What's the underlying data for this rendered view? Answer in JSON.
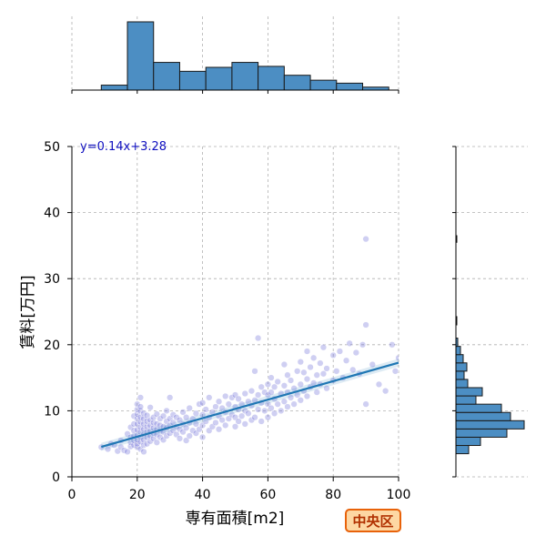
{
  "chart_data": {
    "type": "scatter",
    "xlabel": "専有面積[m2]",
    "ylabel": "賃料[万円]",
    "xlim": [
      0,
      100
    ],
    "ylim": [
      0,
      50
    ],
    "xticks": [
      "0",
      "20",
      "40",
      "60",
      "80",
      "100"
    ],
    "yticks": [
      "0",
      "10",
      "20",
      "30",
      "40",
      "50"
    ],
    "grid": true,
    "regression": {
      "label": "y=0.14x+3.28",
      "slope": 0.14,
      "intercept": 3.28,
      "x_range": [
        9,
        100
      ]
    },
    "marginal_x_histogram": {
      "bins": [
        {
          "x0": 9,
          "x1": 17,
          "count": 5
        },
        {
          "x0": 17,
          "x1": 25,
          "count": 69
        },
        {
          "x0": 25,
          "x1": 33,
          "count": 28
        },
        {
          "x0": 33,
          "x1": 41,
          "count": 19
        },
        {
          "x0": 41,
          "x1": 49,
          "count": 23
        },
        {
          "x0": 49,
          "x1": 57,
          "count": 28
        },
        {
          "x0": 57,
          "x1": 65,
          "count": 24
        },
        {
          "x0": 65,
          "x1": 73,
          "count": 15
        },
        {
          "x0": 73,
          "x1": 81,
          "count": 10
        },
        {
          "x0": 81,
          "x1": 89,
          "count": 7
        },
        {
          "x0": 89,
          "x1": 97,
          "count": 3
        }
      ]
    },
    "marginal_y_histogram": {
      "bins": [
        {
          "y0": 3.5,
          "y1": 4.75,
          "count": 14
        },
        {
          "y0": 4.75,
          "y1": 6.0,
          "count": 27
        },
        {
          "y0": 6.0,
          "y1": 7.25,
          "count": 56
        },
        {
          "y0": 7.25,
          "y1": 8.5,
          "count": 75
        },
        {
          "y0": 8.5,
          "y1": 9.75,
          "count": 60
        },
        {
          "y0": 9.75,
          "y1": 11.0,
          "count": 50
        },
        {
          "y0": 11.0,
          "y1": 12.25,
          "count": 22
        },
        {
          "y0": 12.25,
          "y1": 13.5,
          "count": 29
        },
        {
          "y0": 13.5,
          "y1": 14.75,
          "count": 13
        },
        {
          "y0": 14.75,
          "y1": 16.0,
          "count": 9
        },
        {
          "y0": 16.0,
          "y1": 17.25,
          "count": 12
        },
        {
          "y0": 17.25,
          "y1": 18.5,
          "count": 8
        },
        {
          "y0": 18.5,
          "y1": 19.75,
          "count": 5
        },
        {
          "y0": 19.75,
          "y1": 21.0,
          "count": 2
        },
        {
          "y0": 23.0,
          "y1": 24.25,
          "count": 1
        },
        {
          "y0": 35.5,
          "y1": 36.5,
          "count": 1
        }
      ]
    },
    "points": [
      [
        9,
        4.5
      ],
      [
        11,
        4.2
      ],
      [
        12,
        5.0
      ],
      [
        13,
        4.8
      ],
      [
        14,
        3.9
      ],
      [
        15,
        5.5
      ],
      [
        15,
        4.5
      ],
      [
        16,
        4.0
      ],
      [
        17,
        6.5
      ],
      [
        17,
        3.8
      ],
      [
        18,
        4.6
      ],
      [
        18,
        5.2
      ],
      [
        18,
        6.0
      ],
      [
        18,
        7.5
      ],
      [
        19,
        4.8
      ],
      [
        19,
        5.5
      ],
      [
        19,
        6.2
      ],
      [
        19,
        7.0
      ],
      [
        19,
        8.0
      ],
      [
        19,
        9.2
      ],
      [
        20,
        4.5
      ],
      [
        20,
        5.0
      ],
      [
        20,
        5.6
      ],
      [
        20,
        6.3
      ],
      [
        20,
        7.1
      ],
      [
        20,
        8.0
      ],
      [
        20,
        8.8
      ],
      [
        20,
        9.5
      ],
      [
        20,
        10.2
      ],
      [
        20,
        11.0
      ],
      [
        21,
        4.2
      ],
      [
        21,
        5.3
      ],
      [
        21,
        6.0
      ],
      [
        21,
        6.8
      ],
      [
        21,
        7.5
      ],
      [
        21,
        8.3
      ],
      [
        21,
        9.0
      ],
      [
        21,
        10.0
      ],
      [
        21,
        10.6
      ],
      [
        21,
        12.0
      ],
      [
        22,
        4.8
      ],
      [
        22,
        5.6
      ],
      [
        22,
        6.4
      ],
      [
        22,
        7.2
      ],
      [
        22,
        8.0
      ],
      [
        22,
        8.8
      ],
      [
        22,
        9.6
      ],
      [
        22,
        3.8
      ],
      [
        23,
        5.0
      ],
      [
        23,
        6.0
      ],
      [
        23,
        6.8
      ],
      [
        23,
        7.6
      ],
      [
        23,
        8.4
      ],
      [
        23,
        9.3
      ],
      [
        24,
        5.4
      ],
      [
        24,
        6.2
      ],
      [
        24,
        7.0
      ],
      [
        24,
        7.8
      ],
      [
        24,
        8.6
      ],
      [
        24,
        10.5
      ],
      [
        25,
        5.8
      ],
      [
        25,
        6.6
      ],
      [
        25,
        7.4
      ],
      [
        25,
        8.2
      ],
      [
        25,
        9.0
      ],
      [
        26,
        5.2
      ],
      [
        26,
        6.4
      ],
      [
        26,
        7.2
      ],
      [
        26,
        8.0
      ],
      [
        26,
        9.5
      ],
      [
        27,
        6.0
      ],
      [
        27,
        7.0
      ],
      [
        27,
        7.8
      ],
      [
        27,
        8.8
      ],
      [
        28,
        5.6
      ],
      [
        28,
        6.8
      ],
      [
        28,
        7.6
      ],
      [
        28,
        9.2
      ],
      [
        29,
        6.2
      ],
      [
        29,
        7.4
      ],
      [
        29,
        8.4
      ],
      [
        29,
        10.0
      ],
      [
        30,
        6.6
      ],
      [
        30,
        7.8
      ],
      [
        30,
        8.8
      ],
      [
        30,
        12.0
      ],
      [
        31,
        7.0
      ],
      [
        31,
        8.2
      ],
      [
        31,
        9.4
      ],
      [
        32,
        6.4
      ],
      [
        32,
        7.6
      ],
      [
        32,
        9.0
      ],
      [
        33,
        5.8
      ],
      [
        33,
        7.2
      ],
      [
        33,
        8.6
      ],
      [
        34,
        6.8
      ],
      [
        34,
        8.0
      ],
      [
        34,
        9.8
      ],
      [
        35,
        5.5
      ],
      [
        35,
        7.4
      ],
      [
        35,
        9.0
      ],
      [
        36,
        6.2
      ],
      [
        36,
        8.2
      ],
      [
        36,
        10.4
      ],
      [
        37,
        7.0
      ],
      [
        37,
        8.8
      ],
      [
        38,
        6.6
      ],
      [
        38,
        8.0
      ],
      [
        38,
        9.6
      ],
      [
        39,
        7.2
      ],
      [
        39,
        11.0
      ],
      [
        40,
        6.0
      ],
      [
        40,
        7.8
      ],
      [
        40,
        9.4
      ],
      [
        40,
        11.2
      ],
      [
        41,
        8.4
      ],
      [
        41,
        10.2
      ],
      [
        42,
        7.0
      ],
      [
        42,
        9.0
      ],
      [
        42,
        12.0
      ],
      [
        43,
        7.6
      ],
      [
        43,
        9.8
      ],
      [
        44,
        8.2
      ],
      [
        44,
        10.6
      ],
      [
        45,
        7.2
      ],
      [
        45,
        9.2
      ],
      [
        45,
        11.4
      ],
      [
        46,
        8.6
      ],
      [
        46,
        10.4
      ],
      [
        47,
        7.8
      ],
      [
        47,
        9.8
      ],
      [
        47,
        12.2
      ],
      [
        48,
        8.8
      ],
      [
        48,
        11.0
      ],
      [
        49,
        9.4
      ],
      [
        49,
        12.0
      ],
      [
        50,
        7.6
      ],
      [
        50,
        9.0
      ],
      [
        50,
        10.6
      ],
      [
        50,
        12.4
      ],
      [
        51,
        8.4
      ],
      [
        51,
        10.2
      ],
      [
        51,
        11.8
      ],
      [
        52,
        9.2
      ],
      [
        52,
        11.0
      ],
      [
        53,
        8.0
      ],
      [
        53,
        10.0
      ],
      [
        53,
        12.6
      ],
      [
        54,
        9.6
      ],
      [
        54,
        11.4
      ],
      [
        55,
        8.6
      ],
      [
        55,
        10.8
      ],
      [
        55,
        13.0
      ],
      [
        56,
        9.0
      ],
      [
        56,
        11.6
      ],
      [
        56,
        16.0
      ],
      [
        57,
        10.2
      ],
      [
        57,
        12.4
      ],
      [
        57,
        21.0
      ],
      [
        58,
        8.4
      ],
      [
        58,
        11.2
      ],
      [
        58,
        13.6
      ],
      [
        59,
        10.0
      ],
      [
        59,
        12.8
      ],
      [
        60,
        9.0
      ],
      [
        60,
        11.0
      ],
      [
        60,
        12.4
      ],
      [
        60,
        14.0
      ],
      [
        61,
        10.4
      ],
      [
        61,
        12.8
      ],
      [
        61,
        15.0
      ],
      [
        62,
        9.6
      ],
      [
        62,
        11.8
      ],
      [
        62,
        13.6
      ],
      [
        63,
        11.0
      ],
      [
        63,
        14.4
      ],
      [
        64,
        10.0
      ],
      [
        64,
        12.6
      ],
      [
        65,
        11.4
      ],
      [
        65,
        13.8
      ],
      [
        65,
        17.0
      ],
      [
        66,
        10.6
      ],
      [
        66,
        12.8
      ],
      [
        66,
        15.4
      ],
      [
        67,
        12.0
      ],
      [
        67,
        14.6
      ],
      [
        68,
        11.0
      ],
      [
        68,
        13.4
      ],
      [
        69,
        12.4
      ],
      [
        69,
        16.0
      ],
      [
        70,
        11.6
      ],
      [
        70,
        14.0
      ],
      [
        70,
        17.4
      ],
      [
        71,
        13.0
      ],
      [
        71,
        15.8
      ],
      [
        72,
        12.2
      ],
      [
        72,
        14.8
      ],
      [
        72,
        19.0
      ],
      [
        73,
        13.6
      ],
      [
        73,
        16.6
      ],
      [
        74,
        14.2
      ],
      [
        74,
        18.0
      ],
      [
        75,
        12.8
      ],
      [
        75,
        15.4
      ],
      [
        76,
        14.0
      ],
      [
        76,
        17.2
      ],
      [
        77,
        15.6
      ],
      [
        77,
        19.6
      ],
      [
        78,
        13.4
      ],
      [
        78,
        16.4
      ],
      [
        80,
        14.6
      ],
      [
        80,
        18.4
      ],
      [
        81,
        16.0
      ],
      [
        82,
        19.0
      ],
      [
        83,
        15.0
      ],
      [
        84,
        17.6
      ],
      [
        85,
        20.2
      ],
      [
        86,
        16.2
      ],
      [
        87,
        18.8
      ],
      [
        88,
        15.6
      ],
      [
        89,
        20.0
      ],
      [
        90,
        11.0
      ],
      [
        90,
        23.0
      ],
      [
        90,
        36.0
      ],
      [
        92,
        17.0
      ],
      [
        94,
        14.0
      ],
      [
        96,
        13.0
      ],
      [
        98,
        20.0
      ],
      [
        99,
        16.0
      ],
      [
        100,
        18.0
      ]
    ]
  },
  "badge": {
    "label": "中央区"
  }
}
